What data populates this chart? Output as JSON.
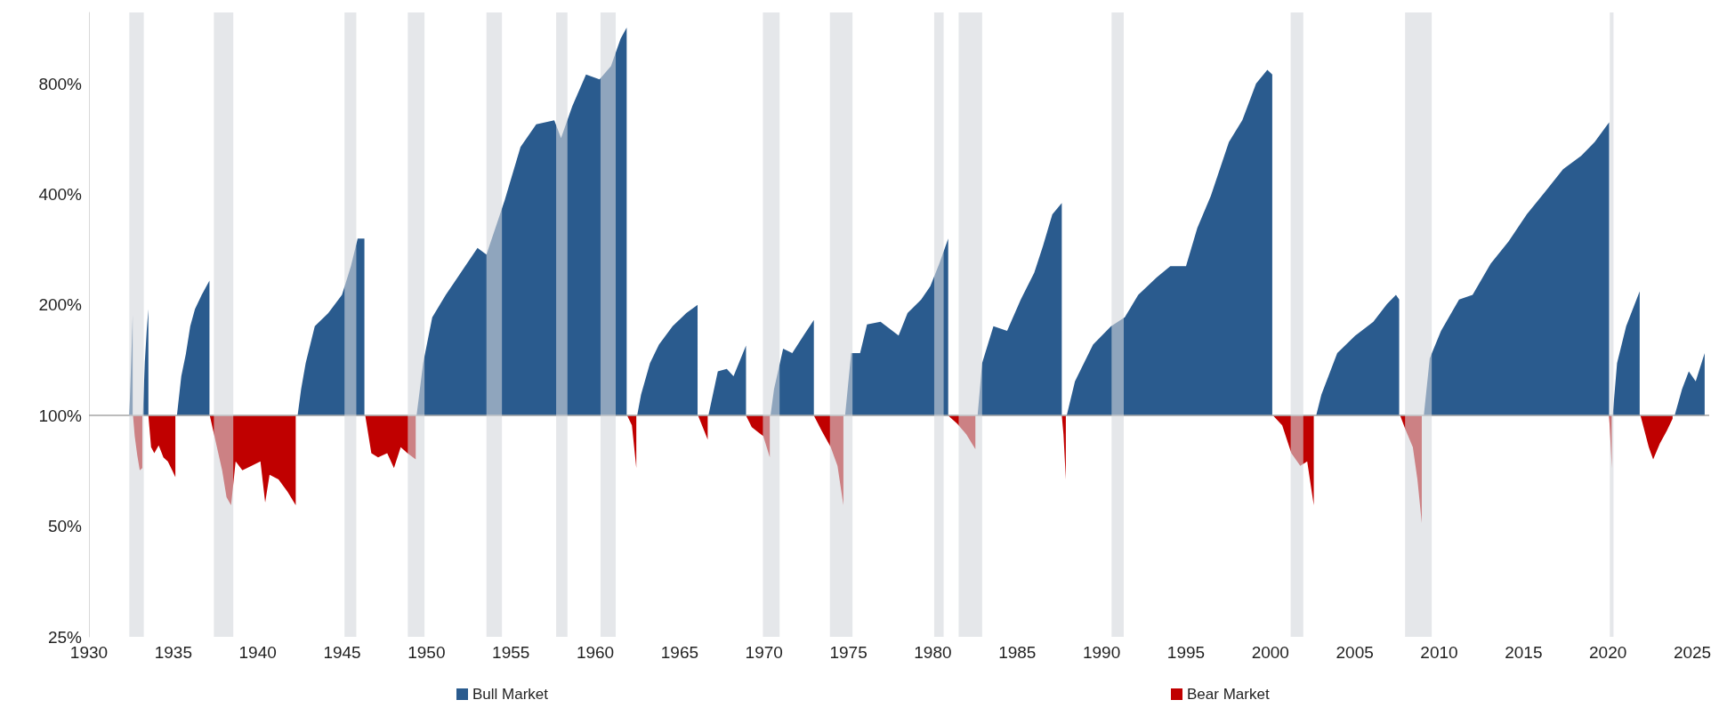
{
  "chart_data": {
    "type": "area",
    "log": "y",
    "legend": "bottom",
    "xlim": [
      1930,
      2026
    ],
    "xticks": [
      1930,
      1935,
      1940,
      1945,
      1950,
      1955,
      1960,
      1965,
      1970,
      1975,
      1980,
      1985,
      1990,
      1995,
      2000,
      2005,
      2010,
      2015,
      2020,
      2025
    ],
    "ylim": [
      25,
      1250
    ],
    "yticks": [
      {
        "value": 25,
        "label": "25%"
      },
      {
        "value": 50,
        "label": "50%"
      },
      {
        "value": 100,
        "label": "100%"
      },
      {
        "value": 200,
        "label": "200%"
      },
      {
        "value": 400,
        "label": "400%"
      },
      {
        "value": 800,
        "label": "800%"
      }
    ],
    "ref_lines": [
      {
        "axis": "y",
        "value": 100,
        "color": "#a6a6a6"
      }
    ],
    "bands": [
      {
        "axis": "x",
        "from": 1932.39,
        "to": 1933.25,
        "color": "#d3d7dc"
      },
      {
        "axis": "x",
        "from": 1937.4,
        "to": 1938.55,
        "color": "#d3d7dc"
      },
      {
        "axis": "x",
        "from": 1945.14,
        "to": 1945.84,
        "color": "#d3d7dc"
      },
      {
        "axis": "x",
        "from": 1948.89,
        "to": 1949.88,
        "color": "#d3d7dc"
      },
      {
        "axis": "x",
        "from": 1953.55,
        "to": 1954.47,
        "color": "#d3d7dc"
      },
      {
        "axis": "x",
        "from": 1957.68,
        "to": 1958.35,
        "color": "#d3d7dc"
      },
      {
        "axis": "x",
        "from": 1960.31,
        "to": 1961.21,
        "color": "#d3d7dc"
      },
      {
        "axis": "x",
        "from": 1969.93,
        "to": 1970.92,
        "color": "#d3d7dc"
      },
      {
        "axis": "x",
        "from": 1973.9,
        "to": 1975.24,
        "color": "#d3d7dc"
      },
      {
        "axis": "x",
        "from": 1980.08,
        "to": 1980.64,
        "color": "#d3d7dc"
      },
      {
        "axis": "x",
        "from": 1981.53,
        "to": 1982.92,
        "color": "#d3d7dc"
      },
      {
        "axis": "x",
        "from": 1990.59,
        "to": 1991.31,
        "color": "#d3d7dc"
      },
      {
        "axis": "x",
        "from": 2001.2,
        "to": 2001.95,
        "color": "#d3d7dc"
      },
      {
        "axis": "x",
        "from": 2007.98,
        "to": 2009.56,
        "color": "#d3d7dc"
      },
      {
        "axis": "x",
        "from": 2020.11,
        "to": 2020.33,
        "color": "#d3d7dc"
      }
    ],
    "series": [
      {
        "name": "Bull Market",
        "color": "#2a5b8e",
        "x": [
          1932.39,
          1932.5,
          1932.59,
          1932.59,
          1933.19,
          1933.31,
          1933.42,
          1933.52,
          1933.52,
          1935.21,
          1935.47,
          1935.74,
          1936.0,
          1936.28,
          1936.68,
          1937.14,
          1937.14,
          1942.36,
          1942.57,
          1942.84,
          1943.38,
          1944.18,
          1944.99,
          1945.52,
          1945.92,
          1946.32,
          1946.32,
          1949.41,
          1949.8,
          1950.34,
          1951.14,
          1952.21,
          1953.02,
          1953.55,
          1954.63,
          1955.57,
          1956.5,
          1957.57,
          1957.97,
          1958.64,
          1959.45,
          1960.25,
          1960.93,
          1961.5,
          1961.86,
          1961.86,
          1962.48,
          1962.71,
          1963.24,
          1963.77,
          1964.58,
          1965.39,
          1966.06,
          1966.06,
          1966.7,
          1967.26,
          1967.79,
          1968.19,
          1968.93,
          1968.93,
          1970.38,
          1970.59,
          1971.13,
          1971.67,
          1972.34,
          1972.95,
          1972.95,
          1974.8,
          1975.16,
          1975.69,
          1976.1,
          1976.9,
          1977.97,
          1978.5,
          1979.31,
          1979.85,
          1980.38,
          1980.91,
          1980.91,
          1982.65,
          1982.92,
          1983.59,
          1984.4,
          1985.21,
          1986.01,
          1986.53,
          1987.08,
          1987.64,
          1987.64,
          1987.93,
          1988.42,
          1989.49,
          1990.56,
          1991.37,
          1992.17,
          1993.27,
          1994.07,
          1995.0,
          1995.67,
          1996.47,
          1997.54,
          1998.34,
          1999.15,
          1999.82,
          2000.11,
          2000.11,
          2002.71,
          2003.02,
          2003.96,
          2005.03,
          2006.1,
          2006.9,
          2007.44,
          2007.63,
          2007.63,
          2009.09,
          2009.44,
          2010.11,
          2011.18,
          2011.98,
          2013.05,
          2014.12,
          2015.19,
          2016.27,
          2017.34,
          2018.41,
          2019.21,
          2020.07,
          2020.07,
          2020.28,
          2020.54,
          2021.08,
          2021.88,
          2021.88,
          2023.95,
          2024.39,
          2024.79,
          2025.2,
          2025.73,
          2025.73
        ],
        "values": [
          100,
          140,
          188,
          100,
          100,
          140,
          170,
          195,
          100,
          100,
          128,
          147,
          175,
          195,
          213,
          233,
          100,
          100,
          118,
          139,
          175,
          190,
          213,
          255,
          303,
          303,
          100,
          100,
          139,
          185,
          213,
          252,
          286,
          274,
          385,
          538,
          620,
          636,
          569,
          695,
          847,
          822,
          894,
          1060,
          1137,
          100,
          100,
          114,
          139,
          156,
          175,
          190,
          200,
          100,
          100,
          132,
          134,
          128,
          155,
          100,
          100,
          118,
          152,
          148,
          165,
          182,
          100,
          100,
          148,
          148,
          177,
          180,
          165,
          190,
          207,
          225,
          259,
          303,
          100,
          100,
          139,
          175,
          170,
          207,
          245,
          290,
          353,
          379,
          100,
          100,
          124,
          156,
          175,
          185,
          213,
          238,
          255,
          255,
          324,
          396,
          555,
          637,
          800,
          872,
          848,
          100,
          100,
          114,
          148,
          165,
          180,
          201,
          213,
          207,
          100,
          100,
          143,
          170,
          207,
          213,
          259,
          298,
          353,
          406,
          468,
          509,
          555,
          628,
          100,
          100,
          139,
          175,
          218,
          100,
          100,
          118,
          132,
          124,
          148,
          100
        ]
      },
      {
        "name": "Bear Market",
        "color": "#c00000",
        "x": [
          1932.61,
          1932.71,
          1932.86,
          1933.01,
          1933.16,
          1933.16,
          1933.52,
          1933.68,
          1933.87,
          1934.13,
          1934.41,
          1934.67,
          1934.93,
          1935.12,
          1935.12,
          1937.16,
          1937.48,
          1937.89,
          1938.15,
          1938.42,
          1938.69,
          1939.09,
          1939.63,
          1940.16,
          1940.44,
          1940.7,
          1941.23,
          1941.77,
          1942.25,
          1942.25,
          1946.37,
          1946.73,
          1947.13,
          1947.67,
          1948.07,
          1948.47,
          1948.87,
          1949.36,
          1949.36,
          1961.89,
          1962.17,
          1962.43,
          1962.43,
          1966.09,
          1966.45,
          1966.66,
          1966.66,
          1968.93,
          1969.27,
          1969.67,
          1969.95,
          1970.34,
          1970.34,
          1972.95,
          1973.41,
          1973.95,
          1974.35,
          1974.7,
          1974.7,
          1980.91,
          1981.45,
          1981.98,
          1982.52,
          1982.52,
          1987.64,
          1987.74,
          1987.88,
          1987.88,
          2000.16,
          2000.7,
          2001.24,
          2001.77,
          2002.18,
          2002.57,
          2002.57,
          2007.69,
          2008.03,
          2008.44,
          2008.71,
          2008.97,
          2008.97,
          2020.07,
          2020.23,
          2020.23,
          2021.93,
          2022.42,
          2022.68,
          2023.08,
          2023.49,
          2023.83,
          2023.83
        ],
        "values": [
          100,
          88,
          78,
          71,
          72,
          100,
          100,
          82,
          79,
          83,
          77,
          75,
          71,
          68,
          100,
          100,
          86,
          71,
          60,
          57,
          75,
          71,
          73,
          75,
          58,
          69,
          67,
          62,
          57,
          100,
          100,
          79,
          77,
          79,
          72,
          82,
          79,
          76,
          100,
          100,
          94,
          72,
          100,
          100,
          91,
          86,
          100,
          100,
          93,
          90,
          88,
          77,
          100,
          100,
          91,
          82,
          73,
          57,
          100,
          100,
          95,
          89,
          81,
          100,
          100,
          89,
          67,
          100,
          100,
          94,
          79,
          73,
          75,
          57,
          100,
          100,
          91,
          82,
          67,
          51,
          100,
          100,
          72,
          100,
          100,
          82,
          76,
          84,
          91,
          98,
          100
        ]
      }
    ]
  }
}
